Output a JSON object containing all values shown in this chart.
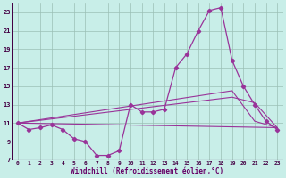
{
  "xlabel": "Windchill (Refroidissement éolien,°C)",
  "bg_color": "#c8eee8",
  "line_color": "#993399",
  "xlim": [
    -0.5,
    23.5
  ],
  "ylim": [
    7,
    24
  ],
  "yticks": [
    7,
    9,
    11,
    13,
    15,
    17,
    19,
    21,
    23
  ],
  "xticks": [
    0,
    1,
    2,
    3,
    4,
    5,
    6,
    7,
    8,
    9,
    10,
    11,
    12,
    13,
    14,
    15,
    16,
    17,
    18,
    19,
    20,
    21,
    22,
    23
  ],
  "main_x": [
    0,
    1,
    2,
    3,
    4,
    5,
    6,
    7,
    8,
    9,
    10,
    11,
    12,
    13,
    14,
    15,
    16,
    17,
    18,
    19,
    20,
    21,
    22,
    23
  ],
  "main_y": [
    11.0,
    10.3,
    10.5,
    10.8,
    10.3,
    9.3,
    9.0,
    7.5,
    7.5,
    8.0,
    13.0,
    12.2,
    12.2,
    12.5,
    17.0,
    18.5,
    21.0,
    23.2,
    23.5,
    17.8,
    15.0,
    13.0,
    11.2,
    10.3
  ],
  "trend1_x": [
    0,
    23
  ],
  "trend1_y": [
    11.0,
    10.5
  ],
  "trend2_x": [
    0,
    19,
    21,
    23
  ],
  "trend2_y": [
    11.0,
    13.8,
    13.2,
    10.5
  ],
  "trend3_x": [
    0,
    19,
    21,
    23
  ],
  "trend3_y": [
    11.0,
    14.5,
    11.2,
    10.5
  ],
  "xlabel_fontsize": 5.5,
  "tick_fontsize": 5
}
